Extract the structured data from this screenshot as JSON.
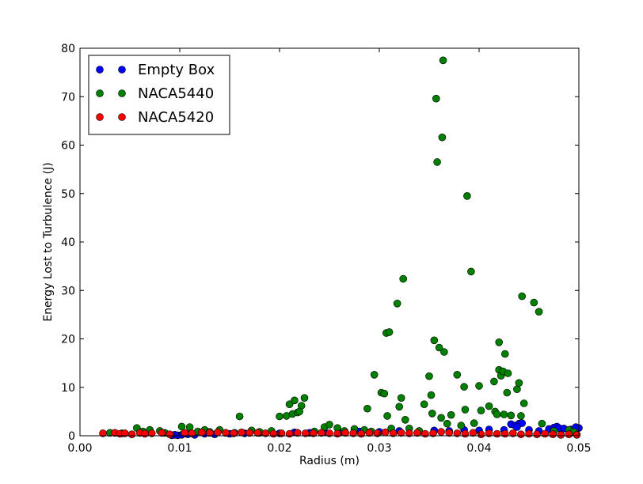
{
  "chart_data": {
    "type": "scatter",
    "title": "",
    "xlabel": "Radius (m)",
    "ylabel": "Energy Lost to Turbulence (J)",
    "xlim": [
      0.0,
      0.05
    ],
    "ylim": [
      0,
      80
    ],
    "xticks": [
      0.0,
      0.01,
      0.02,
      0.03,
      0.04,
      0.05
    ],
    "xtick_labels": [
      "0.00",
      "0.01",
      "0.02",
      "0.03",
      "0.04",
      "0.05"
    ],
    "yticks": [
      0,
      10,
      20,
      30,
      40,
      50,
      60,
      70,
      80
    ],
    "ytick_labels": [
      "0",
      "10",
      "20",
      "30",
      "40",
      "50",
      "60",
      "70",
      "80"
    ],
    "grid": false,
    "legend_position": "top-left",
    "series": [
      {
        "name": "Empty Box",
        "color": "#0000ff",
        "points": [
          [
            0.0092,
            0.1
          ],
          [
            0.0095,
            0.2
          ],
          [
            0.0098,
            0.1
          ],
          [
            0.0102,
            0.2
          ],
          [
            0.0108,
            0.3
          ],
          [
            0.0115,
            0.2
          ],
          [
            0.0125,
            0.4
          ],
          [
            0.0135,
            0.3
          ],
          [
            0.015,
            0.4
          ],
          [
            0.0165,
            0.5
          ],
          [
            0.018,
            0.6
          ],
          [
            0.02,
            0.5
          ],
          [
            0.0215,
            0.7
          ],
          [
            0.023,
            0.6
          ],
          [
            0.0245,
            0.8
          ],
          [
            0.026,
            0.7
          ],
          [
            0.028,
            0.9
          ],
          [
            0.03,
            0.8
          ],
          [
            0.032,
            1.0
          ],
          [
            0.034,
            0.9
          ],
          [
            0.0355,
            1.1
          ],
          [
            0.037,
            1.0
          ],
          [
            0.0385,
            1.2
          ],
          [
            0.04,
            1.1
          ],
          [
            0.041,
            1.3
          ],
          [
            0.0425,
            1.2
          ],
          [
            0.0432,
            2.4
          ],
          [
            0.0436,
            2.1
          ],
          [
            0.044,
            2.5
          ],
          [
            0.0443,
            2.6
          ],
          [
            0.0438,
            1.8
          ],
          [
            0.045,
            1.2
          ],
          [
            0.046,
            1.0
          ],
          [
            0.047,
            1.4
          ],
          [
            0.0475,
            1.7
          ],
          [
            0.0478,
            1.9
          ],
          [
            0.048,
            1.6
          ],
          [
            0.0485,
            1.5
          ],
          [
            0.0492,
            1.3
          ],
          [
            0.0497,
            1.8
          ],
          [
            0.05,
            1.6
          ]
        ]
      },
      {
        "name": "NACA5440",
        "color": "#008000",
        "points": [
          [
            0.003,
            0.6
          ],
          [
            0.0042,
            0.5
          ],
          [
            0.0057,
            1.6
          ],
          [
            0.0063,
            0.9
          ],
          [
            0.007,
            1.2
          ],
          [
            0.008,
            1.0
          ],
          [
            0.0085,
            0.6
          ],
          [
            0.0102,
            1.9
          ],
          [
            0.011,
            1.8
          ],
          [
            0.0118,
            0.9
          ],
          [
            0.0125,
            1.2
          ],
          [
            0.013,
            0.8
          ],
          [
            0.014,
            1.2
          ],
          [
            0.0155,
            0.6
          ],
          [
            0.016,
            4.0
          ],
          [
            0.0172,
            1.1
          ],
          [
            0.018,
            0.8
          ],
          [
            0.0192,
            1.0
          ],
          [
            0.02,
            4.0
          ],
          [
            0.0207,
            4.1
          ],
          [
            0.021,
            6.5
          ],
          [
            0.0213,
            4.5
          ],
          [
            0.0218,
            4.8
          ],
          [
            0.0215,
            7.3
          ],
          [
            0.0222,
            6.2
          ],
          [
            0.0225,
            7.8
          ],
          [
            0.022,
            5.0
          ],
          [
            0.0235,
            0.9
          ],
          [
            0.0245,
            1.8
          ],
          [
            0.025,
            2.3
          ],
          [
            0.0258,
            1.6
          ],
          [
            0.0265,
            1.0
          ],
          [
            0.0275,
            1.4
          ],
          [
            0.0285,
            1.2
          ],
          [
            0.0288,
            5.6
          ],
          [
            0.0292,
            0.9
          ],
          [
            0.0295,
            12.6
          ],
          [
            0.0302,
            8.9
          ],
          [
            0.0305,
            8.7
          ],
          [
            0.0307,
            21.2
          ],
          [
            0.031,
            21.4
          ],
          [
            0.0308,
            4.1
          ],
          [
            0.0312,
            1.5
          ],
          [
            0.0318,
            27.3
          ],
          [
            0.032,
            6.0
          ],
          [
            0.0322,
            7.8
          ],
          [
            0.0324,
            32.4
          ],
          [
            0.0326,
            3.3
          ],
          [
            0.033,
            1.5
          ],
          [
            0.034,
            1.0
          ],
          [
            0.0345,
            6.5
          ],
          [
            0.035,
            12.3
          ],
          [
            0.0352,
            8.4
          ],
          [
            0.0353,
            4.6
          ],
          [
            0.0355,
            19.7
          ],
          [
            0.0357,
            69.6
          ],
          [
            0.0358,
            56.5
          ],
          [
            0.036,
            18.2
          ],
          [
            0.0362,
            3.7
          ],
          [
            0.0363,
            61.6
          ],
          [
            0.0364,
            77.5
          ],
          [
            0.0365,
            17.3
          ],
          [
            0.0368,
            2.5
          ],
          [
            0.0372,
            4.3
          ],
          [
            0.0378,
            12.6
          ],
          [
            0.0382,
            2.1
          ],
          [
            0.0385,
            10.1
          ],
          [
            0.0386,
            5.4
          ],
          [
            0.0388,
            49.5
          ],
          [
            0.0392,
            33.9
          ],
          [
            0.0395,
            2.6
          ],
          [
            0.04,
            10.3
          ],
          [
            0.0402,
            5.2
          ],
          [
            0.041,
            6.1
          ],
          [
            0.0415,
            11.2
          ],
          [
            0.0416,
            5.0
          ],
          [
            0.0418,
            4.4
          ],
          [
            0.042,
            19.3
          ],
          [
            0.042,
            13.6
          ],
          [
            0.0422,
            12.4
          ],
          [
            0.0424,
            13.3
          ],
          [
            0.0425,
            4.4
          ],
          [
            0.0426,
            16.9
          ],
          [
            0.0428,
            8.9
          ],
          [
            0.0429,
            12.9
          ],
          [
            0.0432,
            4.2
          ],
          [
            0.0438,
            9.6
          ],
          [
            0.044,
            10.9
          ],
          [
            0.0442,
            4.1
          ],
          [
            0.0443,
            28.8
          ],
          [
            0.0445,
            6.7
          ],
          [
            0.0455,
            27.5
          ],
          [
            0.046,
            25.6
          ],
          [
            0.0463,
            2.5
          ],
          [
            0.0475,
            1.0
          ],
          [
            0.049,
            1.2
          ],
          [
            0.0495,
            0.8
          ]
        ]
      },
      {
        "name": "NACA5420",
        "color": "#ff0000",
        "points": [
          [
            0.0023,
            0.5
          ],
          [
            0.0035,
            0.6
          ],
          [
            0.004,
            0.4
          ],
          [
            0.0045,
            0.5
          ],
          [
            0.0052,
            0.3
          ],
          [
            0.006,
            0.6
          ],
          [
            0.0065,
            0.4
          ],
          [
            0.0072,
            0.5
          ],
          [
            0.0082,
            0.6
          ],
          [
            0.009,
            0.3
          ],
          [
            0.0105,
            0.6
          ],
          [
            0.0112,
            0.5
          ],
          [
            0.0122,
            0.7
          ],
          [
            0.013,
            0.6
          ],
          [
            0.0138,
            0.7
          ],
          [
            0.0146,
            0.6
          ],
          [
            0.0154,
            0.5
          ],
          [
            0.0162,
            0.7
          ],
          [
            0.017,
            0.6
          ],
          [
            0.0178,
            0.6
          ],
          [
            0.0186,
            0.5
          ],
          [
            0.0194,
            0.4
          ],
          [
            0.0202,
            0.5
          ],
          [
            0.021,
            0.4
          ],
          [
            0.0218,
            0.6
          ],
          [
            0.0226,
            0.5
          ],
          [
            0.0234,
            0.5
          ],
          [
            0.0242,
            0.6
          ],
          [
            0.025,
            0.5
          ],
          [
            0.0258,
            0.4
          ],
          [
            0.0266,
            0.6
          ],
          [
            0.0274,
            0.5
          ],
          [
            0.0282,
            0.4
          ],
          [
            0.029,
            0.6
          ],
          [
            0.0298,
            0.5
          ],
          [
            0.0306,
            0.7
          ],
          [
            0.0314,
            0.5
          ],
          [
            0.0322,
            0.6
          ],
          [
            0.033,
            0.5
          ],
          [
            0.0338,
            0.6
          ],
          [
            0.0346,
            0.4
          ],
          [
            0.0354,
            0.5
          ],
          [
            0.0362,
            0.8
          ],
          [
            0.037,
            0.6
          ],
          [
            0.0378,
            0.5
          ],
          [
            0.0386,
            0.4
          ],
          [
            0.0394,
            0.6
          ],
          [
            0.0402,
            0.3
          ],
          [
            0.041,
            0.5
          ],
          [
            0.0418,
            0.4
          ],
          [
            0.0426,
            0.4
          ],
          [
            0.0434,
            0.5
          ],
          [
            0.0442,
            0.3
          ],
          [
            0.045,
            0.4
          ],
          [
            0.0458,
            0.3
          ],
          [
            0.0466,
            0.4
          ],
          [
            0.0474,
            0.3
          ],
          [
            0.0482,
            0.2
          ],
          [
            0.049,
            0.3
          ],
          [
            0.0498,
            0.2
          ]
        ]
      }
    ]
  }
}
